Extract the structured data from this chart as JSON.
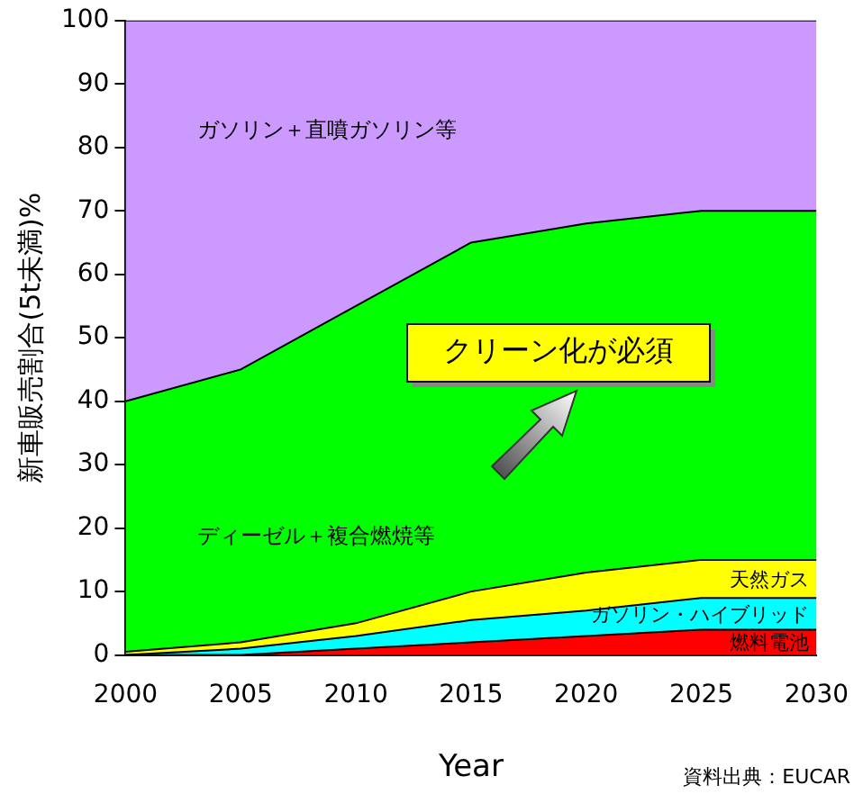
{
  "chart_data": {
    "type": "area",
    "stacked": true,
    "xlabel": "Year",
    "ylabel": "新車販売割合(5t未満)%",
    "x": [
      2000,
      2005,
      2010,
      2015,
      2020,
      2025,
      2030
    ],
    "series": [
      {
        "name": "燃料電池",
        "color": "#ff0000",
        "values": [
          0,
          0,
          1,
          2,
          3,
          4,
          4
        ]
      },
      {
        "name": "ガソリン・ハイブリッド",
        "color": "#00ffff",
        "values": [
          0,
          1,
          2,
          3.5,
          4,
          5,
          5
        ]
      },
      {
        "name": "天然ガス",
        "color": "#ffff00",
        "values": [
          0.5,
          1,
          2,
          4.5,
          6,
          6,
          6
        ]
      },
      {
        "name": "ディーゼル＋複合燃焼等",
        "color": "#00ff00",
        "values": [
          39.5,
          43,
          50,
          55,
          55,
          55,
          55
        ]
      },
      {
        "name": "ガソリン＋直噴ガソリン等",
        "color": "#cc99ff",
        "values": [
          60,
          55,
          45,
          35,
          32,
          30,
          30
        ]
      }
    ],
    "xlim": [
      2000,
      2030
    ],
    "xticks": [
      2000,
      2005,
      2010,
      2015,
      2020,
      2025,
      2030
    ],
    "ylim": [
      0,
      100
    ],
    "yticks": [
      0,
      10,
      20,
      30,
      40,
      50,
      60,
      70,
      80,
      90,
      100
    ],
    "grid": false,
    "legend": false,
    "annotations": [
      "クリーン化が必須",
      "資料出典：EUCAR"
    ]
  }
}
